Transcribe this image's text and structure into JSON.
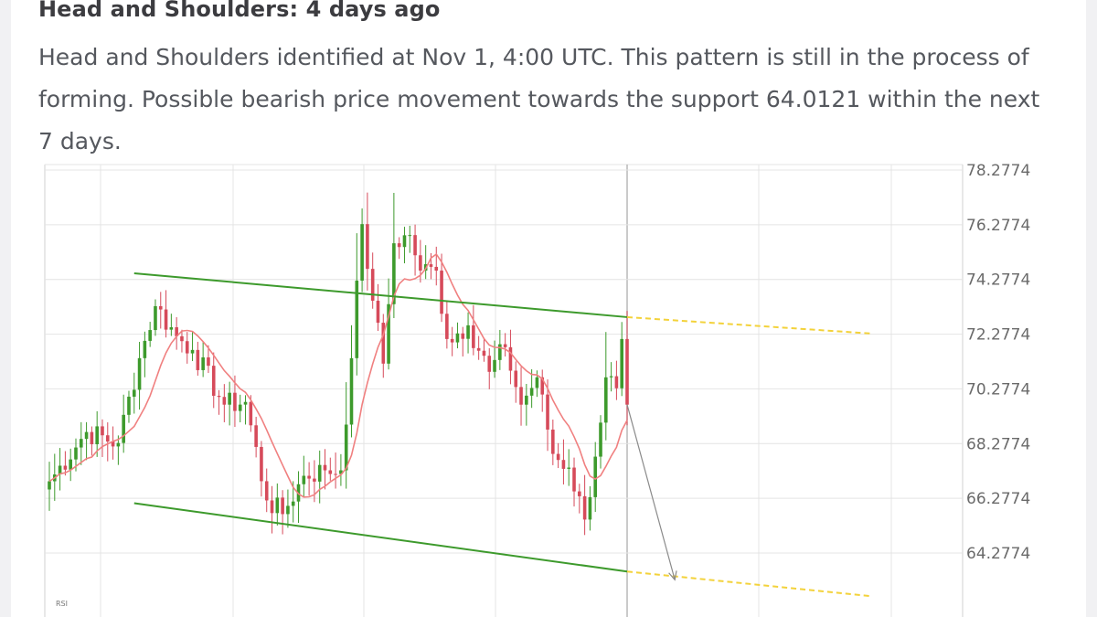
{
  "card": {
    "title": "Head and Shoulders: 4 days ago",
    "description": "Head and Shoulders identified at Nov 1, 4:00 UTC. This pattern is still in the process of forming. Possible bearish price movement towards the support 64.0121 within the next 7 days."
  },
  "colors": {
    "bull": "#3d9a2c",
    "bear": "#d64a5a",
    "moving_average": "#f08080",
    "channel": "#3d9a2c",
    "projection": "#f3d23a",
    "forecast_arrow": "#8a8a8a",
    "grid": "#e4e4e4",
    "axis_text": "#6a6a6a"
  },
  "chart_data": {
    "type": "candlestick",
    "title": "",
    "ylabel": "",
    "ylim": [
      62.3,
      78.3
    ],
    "yticks": [
      "78.2774",
      "76.2774",
      "74.2774",
      "72.2774",
      "70.2774",
      "68.2774",
      "66.2774",
      "64.2774"
    ],
    "indicator_label": "RSI",
    "num_bars": 110,
    "current_bar_index": 109,
    "key_points": [
      {
        "bar": 0,
        "price": 66.9
      },
      {
        "bar": 7,
        "price": 68.7
      },
      {
        "bar": 13,
        "price": 68.3
      },
      {
        "bar": 17,
        "price": 71.4
      },
      {
        "bar": 20,
        "price": 73.3
      },
      {
        "bar": 24,
        "price": 72.2
      },
      {
        "bar": 27,
        "price": 71.7
      },
      {
        "bar": 33,
        "price": 69.7
      },
      {
        "bar": 37,
        "price": 69.8
      },
      {
        "bar": 41,
        "price": 66.2
      },
      {
        "bar": 44,
        "price": 65.7
      },
      {
        "bar": 48,
        "price": 67.1
      },
      {
        "bar": 52,
        "price": 67.3
      },
      {
        "bar": 55,
        "price": 67.3
      },
      {
        "bar": 57,
        "price": 71.4
      },
      {
        "bar": 59,
        "price": 76.3
      },
      {
        "bar": 61,
        "price": 73.5
      },
      {
        "bar": 63,
        "price": 71.2
      },
      {
        "bar": 65,
        "price": 75.6
      },
      {
        "bar": 68,
        "price": 75.9
      },
      {
        "bar": 70,
        "price": 74.6
      },
      {
        "bar": 73,
        "price": 74.6
      },
      {
        "bar": 75,
        "price": 72.1
      },
      {
        "bar": 79,
        "price": 72.6
      },
      {
        "bar": 83,
        "price": 70.9
      },
      {
        "bar": 86,
        "price": 71.8
      },
      {
        "bar": 89,
        "price": 69.7
      },
      {
        "bar": 92,
        "price": 70.7
      },
      {
        "bar": 95,
        "price": 67.9
      },
      {
        "bar": 98,
        "price": 67.4
      },
      {
        "bar": 101,
        "price": 65.5
      },
      {
        "bar": 103,
        "price": 67.8
      },
      {
        "bar": 105,
        "price": 70.7
      },
      {
        "bar": 107,
        "price": 70.3
      },
      {
        "bar": 108,
        "price": 72.1
      },
      {
        "bar": 109,
        "price": 69.7
      }
    ],
    "ma_period": 9,
    "resistance_line": [
      {
        "bar": 16,
        "price": 74.5
      },
      {
        "bar": 109,
        "price": 72.9
      }
    ],
    "resistance_projection": [
      {
        "bar": 109,
        "price": 72.9
      },
      {
        "bar": 155,
        "price": 72.3
      }
    ],
    "support_line": [
      {
        "bar": 16,
        "price": 66.1
      },
      {
        "bar": 109,
        "price": 63.6
      }
    ],
    "support_projection": [
      {
        "bar": 109,
        "price": 63.6
      },
      {
        "bar": 155,
        "price": 62.7
      }
    ],
    "forecast_arrow": [
      {
        "bar": 109,
        "price": 69.7
      },
      {
        "bar": 118,
        "price": 63.3
      }
    ]
  }
}
